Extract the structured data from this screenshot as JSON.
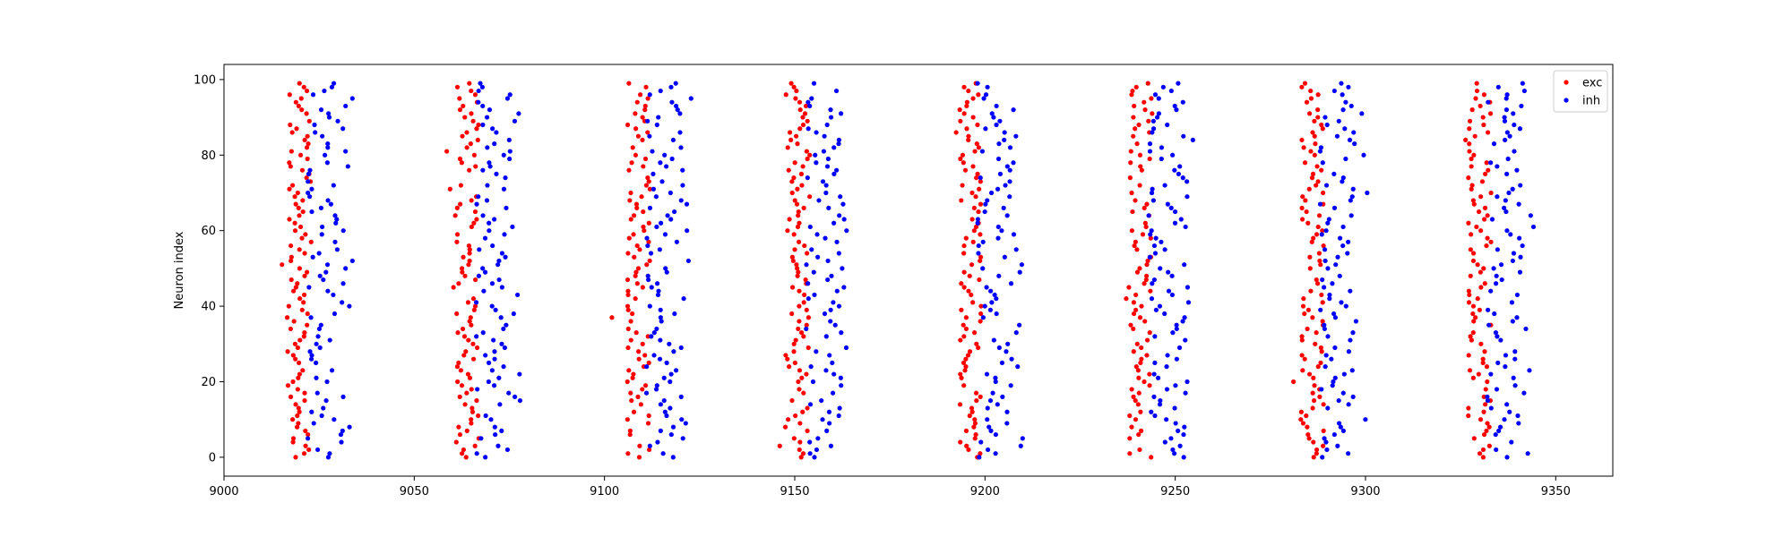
{
  "chart_data": {
    "type": "scatter",
    "title": "",
    "xlabel": "",
    "ylabel": "Neuron index",
    "xlim": [
      9000,
      9365
    ],
    "ylim": [
      -5,
      104
    ],
    "xticks": [
      9000,
      9050,
      9100,
      9150,
      9200,
      9250,
      9300,
      9350
    ],
    "yticks": [
      0,
      20,
      40,
      60,
      80,
      100
    ],
    "grid": false,
    "legend_position": "top-right",
    "burst_centers": [
      9017,
      9061,
      9106,
      9148,
      9193,
      9238,
      9283,
      9327
    ],
    "neurons": 100,
    "series": [
      {
        "name": "exc",
        "color": "#ff0000",
        "description": "one spike per neuron index 0-99 in each burst, starting near burst center (x offsets +0 to +5, ~9016-9022 for first burst)",
        "x_offset_range": [
          0,
          6
        ],
        "first_burst_x_range": [
          9016,
          9022
        ],
        "y_range": [
          0,
          99
        ]
      },
      {
        "name": "inh",
        "color": "#0000ff",
        "description": "spikes trailing excitatory spikes within each burst",
        "x_offset_range": [
          5,
          18
        ],
        "first_burst_x_range": [
          9022,
          9036
        ],
        "y_range": [
          0,
          99
        ]
      }
    ]
  }
}
